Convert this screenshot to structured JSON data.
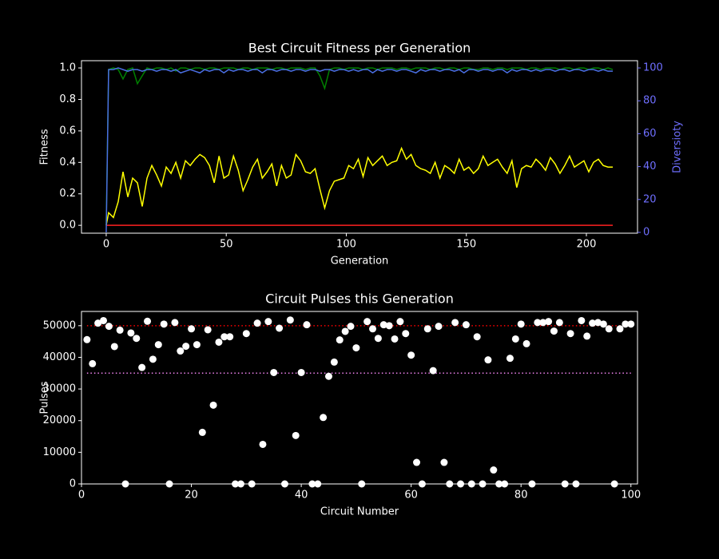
{
  "chart_data": [
    {
      "type": "line",
      "title": "Best Circuit Fitness per Generation",
      "xlabel": "Generation",
      "ylabel": "Fitness",
      "y2label": "Diversioty",
      "y2color": "#6f6fff",
      "x": [
        0,
        1,
        3,
        5,
        7,
        9,
        11,
        13,
        15,
        17,
        19,
        21,
        23,
        25,
        27,
        29,
        31,
        33,
        35,
        37,
        39,
        41,
        43,
        45,
        47,
        49,
        51,
        53,
        55,
        57,
        59,
        61,
        63,
        65,
        67,
        69,
        71,
        73,
        75,
        77,
        79,
        81,
        83,
        85,
        87,
        89,
        91,
        93,
        95,
        97,
        99,
        101,
        103,
        105,
        107,
        109,
        111,
        113,
        115,
        117,
        119,
        121,
        123,
        125,
        127,
        129,
        131,
        133,
        135,
        137,
        139,
        141,
        143,
        145,
        147,
        149,
        151,
        153,
        155,
        157,
        159,
        161,
        163,
        165,
        167,
        169,
        171,
        173,
        175,
        177,
        179,
        181,
        183,
        185,
        187,
        189,
        191,
        193,
        195,
        197,
        199,
        201,
        203,
        205,
        207,
        209,
        211
      ],
      "series": [
        {
          "color": "#008000",
          "values": [
            0,
            0.99,
            1.0,
            0.99,
            0.93,
            0.99,
            1.0,
            0.9,
            0.95,
            1.0,
            0.99,
            1.0,
            1.0,
            0.99,
            1.0,
            0.98,
            1.0,
            1.0,
            0.99,
            1.0,
            1.0,
            0.99,
            1.0,
            1.0,
            0.99,
            1.0,
            1.0,
            1.0,
            0.99,
            1.0,
            1.0,
            0.99,
            1.0,
            1.0,
            1.0,
            0.99,
            1.0,
            1.0,
            0.99,
            1.0,
            1.0,
            1.0,
            0.99,
            1.0,
            1.0,
            0.95,
            0.87,
            0.99,
            1.0,
            1.0,
            0.99,
            1.0,
            1.0,
            1.0,
            0.99,
            1.0,
            1.0,
            0.99,
            1.0,
            1.0,
            1.0,
            0.99,
            1.0,
            1.0,
            0.99,
            1.0,
            1.0,
            1.0,
            0.99,
            1.0,
            1.0,
            0.99,
            1.0,
            1.0,
            0.99,
            1.0,
            1.0,
            0.99,
            0.99,
            1.0,
            1.0,
            0.99,
            1.0,
            1.0,
            0.99,
            1.0,
            1.0,
            1.0,
            0.99,
            1.0,
            1.0,
            0.99,
            1.0,
            1.0,
            1.0,
            0.99,
            1.0,
            1.0,
            0.99,
            1.0,
            1.0,
            0.99,
            1.0,
            1.0,
            0.99,
            1.0,
            0.99
          ]
        },
        {
          "color": "#ffff00",
          "values": [
            0,
            0.08,
            0.05,
            0.15,
            0.34,
            0.18,
            0.3,
            0.27,
            0.12,
            0.3,
            0.38,
            0.32,
            0.25,
            0.37,
            0.33,
            0.4,
            0.3,
            0.41,
            0.38,
            0.42,
            0.45,
            0.43,
            0.38,
            0.27,
            0.44,
            0.3,
            0.32,
            0.44,
            0.35,
            0.22,
            0.29,
            0.37,
            0.42,
            0.3,
            0.34,
            0.39,
            0.25,
            0.38,
            0.3,
            0.32,
            0.45,
            0.41,
            0.34,
            0.33,
            0.36,
            0.23,
            0.11,
            0.22,
            0.28,
            0.29,
            0.3,
            0.38,
            0.36,
            0.42,
            0.31,
            0.43,
            0.38,
            0.41,
            0.44,
            0.38,
            0.4,
            0.41,
            0.49,
            0.42,
            0.45,
            0.38,
            0.36,
            0.35,
            0.33,
            0.4,
            0.3,
            0.38,
            0.36,
            0.33,
            0.42,
            0.35,
            0.37,
            0.33,
            0.36,
            0.44,
            0.38,
            0.4,
            0.42,
            0.37,
            0.33,
            0.41,
            0.24,
            0.36,
            0.38,
            0.37,
            0.42,
            0.39,
            0.35,
            0.43,
            0.39,
            0.33,
            0.38,
            0.44,
            0.37,
            0.39,
            0.41,
            0.34,
            0.4,
            0.42,
            0.38,
            0.37,
            0.37
          ]
        },
        {
          "color": "#ff2020",
          "values": [
            0,
            0,
            0,
            0,
            0,
            0,
            0,
            0,
            0,
            0,
            0,
            0,
            0,
            0,
            0,
            0,
            0,
            0,
            0,
            0,
            0,
            0,
            0,
            0,
            0,
            0,
            0,
            0,
            0,
            0,
            0,
            0,
            0,
            0,
            0,
            0,
            0,
            0,
            0,
            0,
            0,
            0,
            0,
            0,
            0,
            0,
            0,
            0,
            0,
            0,
            0,
            0,
            0,
            0,
            0,
            0,
            0,
            0,
            0,
            0,
            0,
            0,
            0,
            0,
            0,
            0,
            0,
            0,
            0,
            0,
            0,
            0,
            0,
            0,
            0,
            0,
            0,
            0,
            0,
            0,
            0,
            0,
            0,
            0,
            0,
            0,
            0,
            0,
            0,
            0,
            0,
            0,
            0,
            0,
            0,
            0,
            0,
            0,
            0,
            0,
            0,
            0,
            0,
            0,
            0,
            0,
            0
          ]
        },
        {
          "color": "#4a6fe3",
          "axis": "y2",
          "values": [
            0,
            99,
            99,
            100,
            99,
            98,
            99,
            99,
            98,
            99,
            99,
            98,
            99,
            99,
            98,
            99,
            97,
            98,
            99,
            98,
            97,
            99,
            98,
            99,
            99,
            97,
            99,
            98,
            99,
            99,
            98,
            99,
            99,
            97,
            99,
            99,
            98,
            99,
            99,
            98,
            99,
            99,
            98,
            99,
            99,
            98,
            99,
            99,
            98,
            99,
            99,
            98,
            99,
            98,
            99,
            99,
            97,
            99,
            98,
            99,
            99,
            98,
            99,
            99,
            98,
            97,
            99,
            98,
            99,
            99,
            98,
            99,
            99,
            98,
            99,
            97,
            99,
            99,
            98,
            99,
            99,
            98,
            99,
            99,
            97,
            99,
            98,
            99,
            99,
            98,
            99,
            98,
            99,
            99,
            98,
            99,
            99,
            98,
            99,
            99,
            98,
            99,
            99,
            98,
            99,
            98,
            98
          ]
        }
      ],
      "xlim": [
        -10.3,
        221.3
      ],
      "ylim": [
        -0.05,
        1.046
      ],
      "y2lim": [
        -0.5,
        104.4
      ],
      "xticks": [
        0,
        50,
        100,
        150,
        200
      ],
      "yticks": [
        {
          "value": 0,
          "label": "0.0"
        },
        0.2,
        0.4,
        0.6,
        0.8,
        {
          "value": 1,
          "label": "1.0"
        }
      ],
      "y2ticks": [
        0,
        20,
        40,
        60,
        80,
        100
      ]
    },
    {
      "type": "scatter",
      "title": "Circuit Pulses this Generation",
      "xlabel": "Circuit Number",
      "ylabel": "Pulses",
      "color": "#ffffff",
      "x": [
        1,
        2,
        3,
        4,
        5,
        6,
        7,
        8,
        9,
        10,
        11,
        12,
        13,
        14,
        15,
        16,
        17,
        18,
        19,
        20,
        21,
        22,
        23,
        24,
        25,
        26,
        27,
        28,
        29,
        30,
        31,
        32,
        33,
        34,
        35,
        36,
        37,
        38,
        39,
        40,
        41,
        42,
        43,
        44,
        45,
        46,
        47,
        48,
        49,
        50,
        51,
        52,
        53,
        54,
        55,
        56,
        57,
        58,
        59,
        60,
        61,
        62,
        63,
        64,
        65,
        66,
        67,
        68,
        69,
        70,
        71,
        72,
        73,
        74,
        75,
        76,
        77,
        78,
        79,
        80,
        81,
        82,
        83,
        84,
        85,
        86,
        87,
        88,
        89,
        90,
        91,
        92,
        93,
        94,
        95,
        96,
        97,
        98,
        99,
        100
      ],
      "values": [
        45600,
        38000,
        50800,
        51600,
        49800,
        43400,
        48600,
        0,
        47700,
        46000,
        36800,
        51400,
        39400,
        44000,
        50500,
        0,
        51000,
        42000,
        43500,
        49000,
        44000,
        16300,
        48700,
        24900,
        44800,
        46500,
        46500,
        0,
        0,
        47500,
        0,
        50800,
        12500,
        51300,
        35200,
        49200,
        0,
        51800,
        15300,
        35200,
        50300,
        0,
        0,
        21000,
        34000,
        38500,
        45500,
        48200,
        49800,
        43000,
        0,
        51300,
        49000,
        46000,
        50300,
        50000,
        45800,
        51300,
        47500,
        40700,
        6800,
        0,
        49000,
        35800,
        49800,
        6800,
        0,
        51000,
        0,
        50300,
        0,
        46500,
        0,
        39200,
        4400,
        0,
        0,
        39700,
        45800,
        50500,
        44300,
        0,
        51000,
        51000,
        51300,
        48300,
        51000,
        0,
        47500,
        0,
        51600,
        46700,
        50800,
        51000,
        50500,
        49000,
        0,
        49000,
        50500,
        50500
      ],
      "hlines": [
        {
          "value": 50000,
          "from": 1,
          "to": 100,
          "color": "#ff0000"
        },
        {
          "value": 35000,
          "from": 1,
          "to": 100,
          "color": "#ee82ee"
        }
      ],
      "xlim": [
        0,
        101.2
      ],
      "ylim": [
        0,
        54500
      ],
      "xticks": [
        0,
        20,
        40,
        60,
        80,
        100
      ],
      "yticks": [
        0,
        10000,
        20000,
        30000,
        40000,
        50000
      ]
    }
  ]
}
